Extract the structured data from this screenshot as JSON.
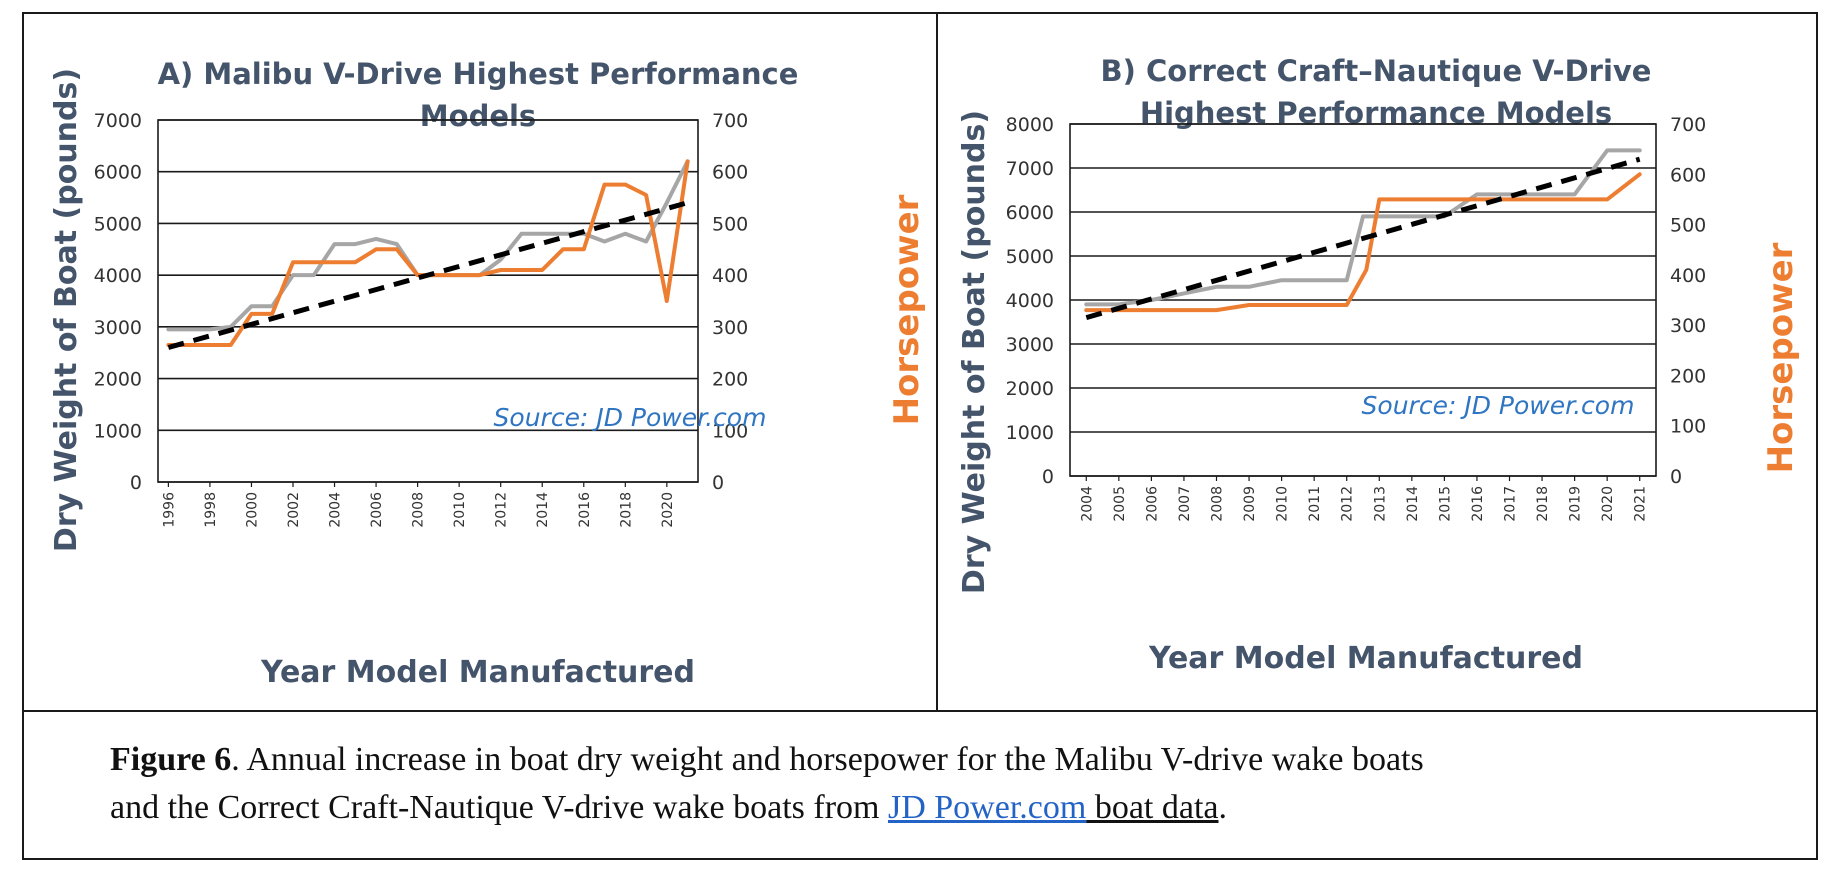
{
  "chart_data": [
    {
      "type": "line",
      "title_lines": [
        "A) Malibu V-Drive Highest Performance",
        "Models"
      ],
      "xlabel": "Year Model Manufactured",
      "ylabel": "Dry Weight of Boat (pounds)",
      "y2label": "Horsepower",
      "x_ticks": [
        "1996",
        "1998",
        "2000",
        "2002",
        "2004",
        "2006",
        "2008",
        "2010",
        "2012",
        "2014",
        "2016",
        "2018",
        "2020"
      ],
      "y_ticks": [
        "0",
        "1000",
        "2000",
        "3000",
        "4000",
        "5000",
        "6000",
        "7000"
      ],
      "y2_ticks": [
        "0",
        "100",
        "200",
        "300",
        "400",
        "500",
        "600",
        "700"
      ],
      "xlim": [
        1995.5,
        2021.5
      ],
      "ylim": [
        0,
        7000
      ],
      "y2lim": [
        0,
        700
      ],
      "grid": true,
      "annotation": "Source: JD Power.com",
      "series": [
        {
          "axis": "left",
          "color": "#a6a6a6",
          "x": [
            1996,
            1997,
            1998,
            1999,
            2000,
            2001,
            2002,
            2003,
            2004,
            2005,
            2006,
            2007,
            2008,
            2009,
            2010,
            2011,
            2012,
            2013,
            2014,
            2015,
            2016,
            2017,
            2018,
            2019,
            2020,
            2021
          ],
          "values": [
            2950,
            2950,
            2950,
            3000,
            3400,
            3400,
            4000,
            4000,
            4600,
            4600,
            4700,
            4600,
            4000,
            4000,
            4000,
            4000,
            4300,
            4800,
            4800,
            4800,
            4800,
            4650,
            4800,
            4650,
            5400,
            6200
          ]
        },
        {
          "axis": "right",
          "color": "#ed7d31",
          "x": [
            1996,
            1997,
            1998,
            1999,
            2000,
            2001,
            2002,
            2003,
            2004,
            2005,
            2006,
            2007,
            2008,
            2009,
            2010,
            2011,
            2012,
            2013,
            2014,
            2015,
            2016,
            2017,
            2018,
            2019,
            2020,
            2021
          ],
          "values": [
            265,
            265,
            265,
            265,
            325,
            325,
            425,
            425,
            425,
            425,
            450,
            450,
            400,
            400,
            400,
            400,
            410,
            410,
            410,
            450,
            450,
            575,
            575,
            555,
            350,
            620
          ]
        },
        {
          "axis": "left",
          "color": "#000000",
          "dashed": true,
          "x": [
            1996,
            2021
          ],
          "values": [
            2600,
            5400
          ]
        }
      ]
    },
    {
      "type": "line",
      "title_lines": [
        "B) Correct Craft–Nautique V-Drive",
        "Highest Performance Models"
      ],
      "xlabel": "Year Model Manufactured",
      "ylabel": "Dry Weight of Boat (pounds)",
      "y2label": "Horsepower",
      "x_ticks": [
        "2004",
        "2005",
        "2006",
        "2007",
        "2008",
        "2009",
        "2010",
        "2011",
        "2012",
        "2013",
        "2014",
        "2015",
        "2016",
        "2017",
        "2018",
        "2019",
        "2020",
        "2021"
      ],
      "y_ticks": [
        "0",
        "1000",
        "2000",
        "3000",
        "4000",
        "5000",
        "6000",
        "7000",
        "8000"
      ],
      "y2_ticks": [
        "0",
        "100",
        "200",
        "300",
        "400",
        "500",
        "600",
        "700"
      ],
      "xlim": [
        2003.5,
        2021.5
      ],
      "ylim": [
        0,
        8000
      ],
      "y2lim": [
        0,
        700
      ],
      "grid": true,
      "annotation": "Source: JD Power.com",
      "series": [
        {
          "axis": "left",
          "color": "#a6a6a6",
          "x": [
            2004,
            2005,
            2006,
            2007,
            2008,
            2009,
            2010,
            2011,
            2012,
            2012.5,
            2013,
            2014,
            2015,
            2016,
            2017,
            2018,
            2019,
            2020,
            2021
          ],
          "values": [
            3900,
            3900,
            4000,
            4150,
            4300,
            4300,
            4450,
            4450,
            4450,
            5900,
            5900,
            5900,
            5900,
            6400,
            6400,
            6400,
            6400,
            7400,
            7400
          ]
        },
        {
          "axis": "right",
          "color": "#ed7d31",
          "x": [
            2004,
            2005,
            2006,
            2007,
            2008,
            2009,
            2010,
            2011,
            2012,
            2012.6,
            2013,
            2014,
            2015,
            2016,
            2017,
            2018,
            2019,
            2020,
            2021
          ],
          "values": [
            330,
            330,
            330,
            330,
            330,
            340,
            340,
            340,
            340,
            410,
            550,
            550,
            550,
            550,
            550,
            550,
            550,
            550,
            600
          ]
        },
        {
          "axis": "left",
          "color": "#000000",
          "dashed": true,
          "x": [
            2004,
            2021
          ],
          "values": [
            3600,
            7200
          ]
        }
      ]
    }
  ],
  "caption": {
    "fig_label": "Figure 6",
    "line1_rest": ".  Annual increase in boat dry weight and horsepower for the Malibu V-drive wake boats",
    "line2_start": "and the Correct Craft-Nautique V-drive wake boats from ",
    "link_text": "JD Power.com",
    "line2_end": " boat data",
    "period": "."
  }
}
